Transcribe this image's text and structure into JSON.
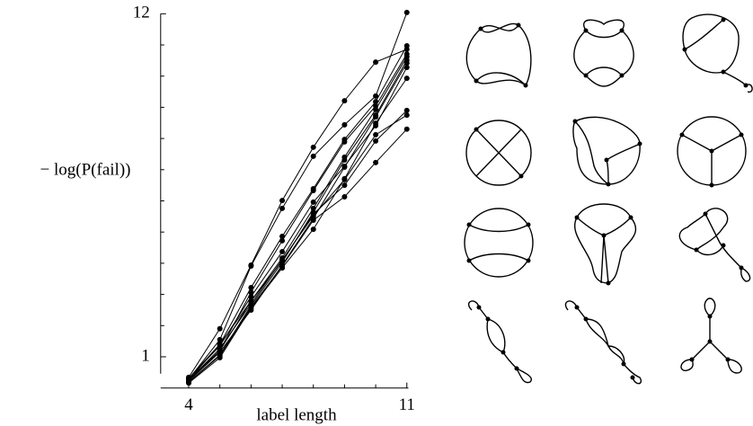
{
  "chart_data": {
    "type": "line",
    "y_label": "− log(P(fail))",
    "x_label": "label length",
    "x": [
      4,
      5,
      6,
      7,
      8,
      9,
      10,
      11
    ],
    "xlim": [
      3.1,
      11.05
    ],
    "xticks": [
      4,
      11
    ],
    "xminorticks": [
      5,
      6,
      7,
      8,
      9,
      10
    ],
    "ylim": [
      0,
      12
    ],
    "yticks": [
      1,
      12
    ],
    "yminorticks": [
      2,
      3,
      4,
      5,
      6,
      7,
      8,
      9,
      10,
      11
    ],
    "color": "#000000",
    "series": [
      {
        "values": [
          0.34,
          1.9,
          3.94,
          6.01,
          7.72,
          9.21,
          10.45,
          10.86
        ]
      },
      {
        "values": [
          0.28,
          1.55,
          3.91,
          5.76,
          7.43,
          8.44,
          9.36,
          12.04
        ]
      },
      {
        "values": [
          0.25,
          1.4,
          3.22,
          4.86,
          6.39,
          7.97,
          9.18,
          10.97
        ]
      },
      {
        "values": [
          0.22,
          1.2,
          3.07,
          4.72,
          6.33,
          7.89,
          9.04,
          10.71
        ]
      },
      {
        "values": [
          0.31,
          1.4,
          2.79,
          4.17,
          5.76,
          7.4,
          8.93,
          10.62
        ]
      },
      {
        "values": [
          0.19,
          1.06,
          2.64,
          4.03,
          5.64,
          7.31,
          8.75,
          10.51
        ]
      },
      {
        "values": [
          0.22,
          1.15,
          2.5,
          3.94,
          5.44,
          7.08,
          8.69,
          10.42
        ]
      },
      {
        "values": [
          0.16,
          0.97,
          2.56,
          3.85,
          5.09,
          6.71,
          8.49,
          9.93
        ]
      },
      {
        "values": [
          0.28,
          1.2,
          2.79,
          4.08,
          5.58,
          6.5,
          7.92,
          8.9
        ]
      },
      {
        "values": [
          0.19,
          1.03,
          2.59,
          3.91,
          5.38,
          6.13,
          7.23,
          8.3
        ]
      },
      {
        "values": [
          0.25,
          1.26,
          2.7,
          4.11,
          5.52,
          6.68,
          8.12,
          8.75
        ]
      },
      {
        "values": [
          0.31,
          1.35,
          2.93,
          4.37,
          5.96,
          7.11,
          8.41,
          10.28
        ]
      }
    ]
  }
}
